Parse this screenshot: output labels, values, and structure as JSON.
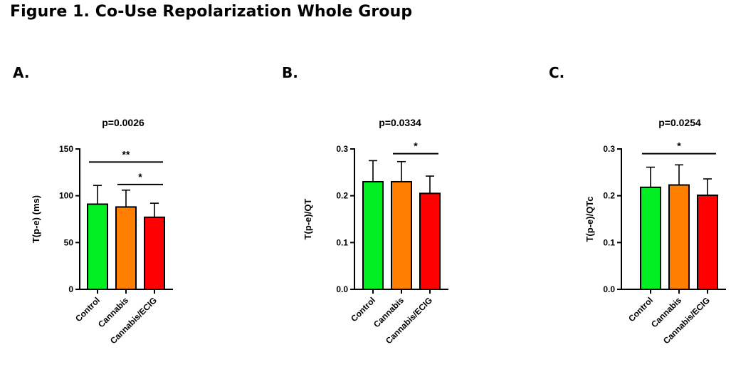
{
  "figure_title": "Figure 1. Co-Use Repolarization Whole Group",
  "panels": [
    "A.",
    "B.",
    "C."
  ],
  "colors": {
    "control": "#00ee22",
    "cannabis": "#ff8000",
    "cannabis_ecig": "#ff0000",
    "axis": "#000000"
  },
  "chart_data": [
    {
      "type": "bar",
      "panel": "A.",
      "title": "p=0.0026",
      "categories": [
        "Control",
        "Cannabis",
        "Cannabis/ECIG"
      ],
      "values": [
        91,
        88,
        77
      ],
      "error_upper": [
        20,
        18,
        15
      ],
      "ylabel": "T(p-e) (ms)",
      "ylim": [
        0,
        150
      ],
      "yticks": [
        0,
        50,
        100,
        150
      ],
      "ytick_labels": [
        "0",
        "50",
        "100",
        "150"
      ],
      "significance": [
        {
          "from": 0,
          "to": 2,
          "label": "**",
          "level": 136
        },
        {
          "from": 1,
          "to": 2,
          "label": "*",
          "level": 112
        }
      ]
    },
    {
      "type": "bar",
      "panel": "B.",
      "title": "p=0.0334",
      "categories": [
        "Control",
        "Cannabis",
        "Cannabis/ECIG"
      ],
      "values": [
        0.23,
        0.23,
        0.205
      ],
      "error_upper": [
        0.045,
        0.043,
        0.037
      ],
      "ylabel": "T(p-e)/QT",
      "ylim": [
        0,
        0.3
      ],
      "yticks": [
        0,
        0.1,
        0.2,
        0.3
      ],
      "ytick_labels": [
        "0.0",
        "0.1",
        "0.2",
        "0.3"
      ],
      "significance": [
        {
          "from": 1,
          "to": 2,
          "label": "*",
          "level": 0.29
        }
      ]
    },
    {
      "type": "bar",
      "panel": "C.",
      "title": "p=0.0254",
      "categories": [
        "Control",
        "Cannabis",
        "Cannabis/ECIG"
      ],
      "values": [
        0.218,
        0.223,
        0.201
      ],
      "error_upper": [
        0.043,
        0.043,
        0.035
      ],
      "ylabel": "T(p-e)/QTc",
      "ylim": [
        0,
        0.3
      ],
      "yticks": [
        0,
        0.1,
        0.2,
        0.3
      ],
      "ytick_labels": [
        "0.0",
        "0.1",
        "0.2",
        "0.3"
      ],
      "significance": [
        {
          "from": 0,
          "to": 2,
          "label": "*",
          "level": 0.29
        }
      ]
    }
  ]
}
